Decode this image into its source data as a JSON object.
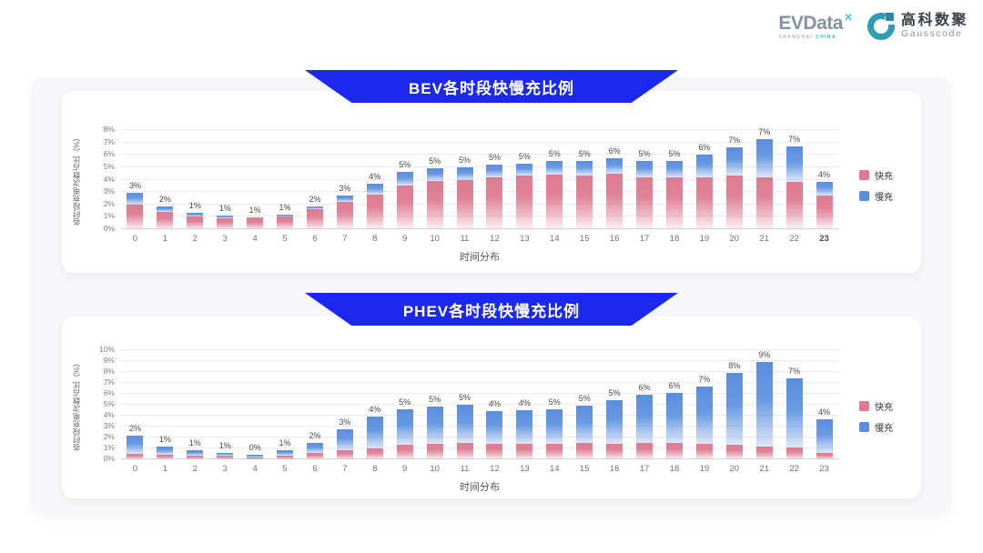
{
  "header": {
    "evdata": {
      "name": "EVData",
      "mark": "✕",
      "subtext_left": "SHANGHAI ",
      "subtext_right": "CHINA"
    },
    "gausscode": {
      "cn": "高科数聚",
      "en": "Gausscode"
    }
  },
  "colors": {
    "fast": "#dd7a90",
    "slow": "#5b8ddd",
    "banner_blue": "#1b29f0"
  },
  "chart_data": [
    {
      "type": "bar",
      "stacked": true,
      "title": "BEV各时段快慢充比例",
      "xlabel": "时间分布",
      "ylabel": "各时段充电次数占比（%）",
      "ylim": [
        0,
        8
      ],
      "ytick_step": 1,
      "grid": true,
      "legend_position": "right",
      "categories": [
        "0",
        "1",
        "2",
        "3",
        "4",
        "5",
        "6",
        "7",
        "8",
        "9",
        "10",
        "11",
        "12",
        "13",
        "14",
        "15",
        "16",
        "17",
        "18",
        "19",
        "20",
        "21",
        "22",
        "23"
      ],
      "series": [
        {
          "name": "快充",
          "color": "#dd7a90",
          "values": [
            2.0,
            1.4,
            1.0,
            0.9,
            0.85,
            1.0,
            1.6,
            2.2,
            2.8,
            3.5,
            3.9,
            4.0,
            4.2,
            4.3,
            4.4,
            4.35,
            4.5,
            4.2,
            4.2,
            4.2,
            4.3,
            4.2,
            3.8,
            2.7
          ]
        },
        {
          "name": "慢充",
          "color": "#5b8ddd",
          "values": [
            0.95,
            0.4,
            0.3,
            0.2,
            0.1,
            0.15,
            0.25,
            0.5,
            0.9,
            1.1,
            1.0,
            1.0,
            1.0,
            1.0,
            1.1,
            1.15,
            1.2,
            1.3,
            1.3,
            1.8,
            2.3,
            3.1,
            2.9,
            1.1
          ]
        }
      ],
      "total_labels": [
        "3%",
        "2%",
        "1%",
        "1%",
        "1%",
        "1%",
        "2%",
        "3%",
        "4%",
        "5%",
        "5%",
        "5%",
        "5%",
        "5%",
        "5%",
        "5%",
        "6%",
        "5%",
        "5%",
        "6%",
        "7%",
        "7%",
        "7%",
        "4%"
      ],
      "bold_last_tick": true
    },
    {
      "type": "bar",
      "stacked": true,
      "title": "PHEV各时段快慢充比例",
      "xlabel": "时间分布",
      "ylabel": "各时段充电次数占比（%）",
      "ylim": [
        0,
        10
      ],
      "ytick_step": 1,
      "grid": true,
      "legend_position": "right",
      "categories": [
        "0",
        "1",
        "2",
        "3",
        "4",
        "5",
        "6",
        "7",
        "8",
        "9",
        "10",
        "11",
        "12",
        "13",
        "14",
        "15",
        "16",
        "17",
        "18",
        "19",
        "20",
        "21",
        "22",
        "23"
      ],
      "series": [
        {
          "name": "快充",
          "color": "#dd7a90",
          "values": [
            0.5,
            0.4,
            0.3,
            0.3,
            0.2,
            0.35,
            0.55,
            0.8,
            1.0,
            1.3,
            1.4,
            1.5,
            1.4,
            1.4,
            1.4,
            1.5,
            1.4,
            1.5,
            1.5,
            1.45,
            1.3,
            1.2,
            1.1,
            0.6
          ]
        },
        {
          "name": "慢充",
          "color": "#5b8ddd",
          "values": [
            1.7,
            0.8,
            0.5,
            0.3,
            0.25,
            0.5,
            0.95,
            1.95,
            2.9,
            3.3,
            3.4,
            3.5,
            3.0,
            3.1,
            3.2,
            3.4,
            4.0,
            4.4,
            4.6,
            5.25,
            6.6,
            7.7,
            6.3,
            3.1
          ]
        }
      ],
      "total_labels": [
        "2%",
        "1%",
        "1%",
        "1%",
        "0%",
        "1%",
        "2%",
        "3%",
        "4%",
        "5%",
        "5%",
        "5%",
        "4%",
        "4%",
        "5%",
        "5%",
        "5%",
        "6%",
        "6%",
        "7%",
        "8%",
        "9%",
        "7%",
        "4%"
      ],
      "bold_last_tick": false
    }
  ]
}
